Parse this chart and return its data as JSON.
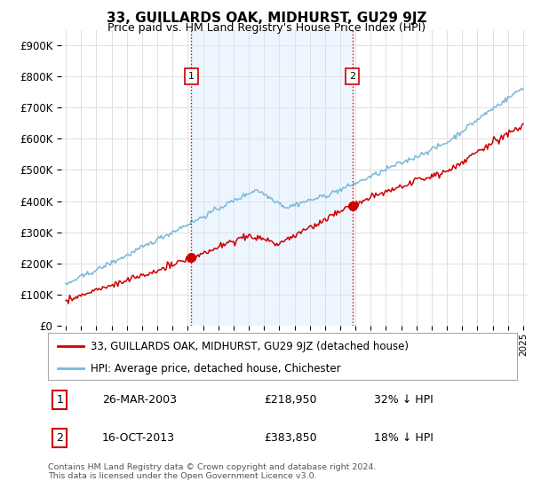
{
  "title": "33, GUILLARDS OAK, MIDHURST, GU29 9JZ",
  "subtitle": "Price paid vs. HM Land Registry's House Price Index (HPI)",
  "ylim": [
    0,
    950000
  ],
  "yticks": [
    0,
    100000,
    200000,
    300000,
    400000,
    500000,
    600000,
    700000,
    800000,
    900000
  ],
  "ytick_labels": [
    "£0",
    "£100K",
    "£200K",
    "£300K",
    "£400K",
    "£500K",
    "£600K",
    "£700K",
    "£800K",
    "£900K"
  ],
  "hpi_color": "#7ab8d9",
  "sale_color": "#cc0000",
  "marker1_year": 2003.23,
  "marker1_value": 218950,
  "marker1_label": "1",
  "marker2_year": 2013.79,
  "marker2_value": 383850,
  "marker2_label": "2",
  "vline_color": "#cc0000",
  "legend_sale_label": "33, GUILLARDS OAK, MIDHURST, GU29 9JZ (detached house)",
  "legend_hpi_label": "HPI: Average price, detached house, Chichester",
  "table_rows": [
    {
      "num": "1",
      "date": "26-MAR-2003",
      "price": "£218,950",
      "pct": "32% ↓ HPI"
    },
    {
      "num": "2",
      "date": "16-OCT-2013",
      "price": "£383,850",
      "pct": "18% ↓ HPI"
    }
  ],
  "footnote": "Contains HM Land Registry data © Crown copyright and database right 2024.\nThis data is licensed under the Open Government Licence v3.0.",
  "background_color": "#ffffff",
  "grid_color": "#e0e0e0",
  "shade_color": "#ddeeff"
}
